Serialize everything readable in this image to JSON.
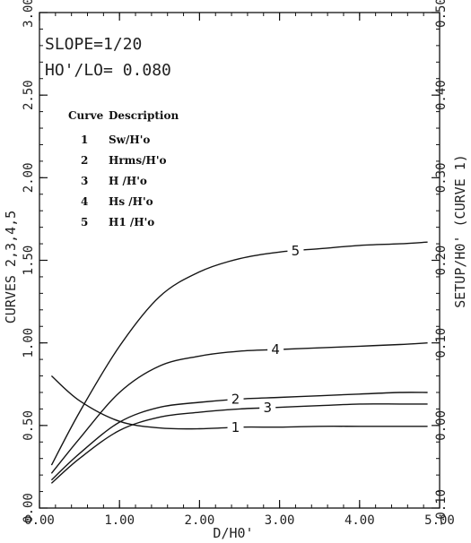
{
  "chart_data": {
    "type": "line",
    "xlabel": "D/H0'",
    "ylabel_left": "CURVES 2,3,4,5",
    "ylabel_right": "SETUP/H0' (CURVE 1)",
    "xlim": [
      0,
      5
    ],
    "ylim_left": [
      0,
      3
    ],
    "ylim_right": [
      -0.1,
      0.5
    ],
    "x_ticks": [
      "0.00",
      "1.00",
      "2.00",
      "3.00",
      "4.00",
      "5.00"
    ],
    "y_left_ticks": [
      "0.00",
      "0.50",
      "1.00",
      "1.50",
      "2.00",
      "2.50",
      "3.00"
    ],
    "y_right_ticks": [
      "-0.10",
      "0.00",
      "0.10",
      "0.20",
      "0.30",
      "0.40",
      "0.50"
    ],
    "params": [
      "SLOPE=1/20",
      "HO'/LO= 0.080"
    ],
    "legend_header": {
      "curve": "Curve",
      "description": "Description"
    },
    "legend": [
      {
        "num": "1",
        "desc": "Sw/H'o"
      },
      {
        "num": "2",
        "desc": "Hrms/H'o"
      },
      {
        "num": "3",
        "desc": "H /H'o"
      },
      {
        "num": "4",
        "desc": "Hs /H'o"
      },
      {
        "num": "5",
        "desc": "H1 /H'o"
      }
    ],
    "series": [
      {
        "name": "1",
        "axis": "right",
        "x": [
          0.15,
          0.5,
          1.0,
          1.5,
          2.0,
          2.5,
          3.0,
          3.5,
          4.0,
          4.5,
          4.85
        ],
        "y": [
          0.06,
          0.03,
          0.005,
          -0.003,
          -0.004,
          -0.002,
          -0.002,
          -0.001,
          -0.001,
          -0.001,
          -0.001
        ]
      },
      {
        "name": "2",
        "axis": "left",
        "x": [
          0.15,
          0.5,
          1.0,
          1.5,
          2.0,
          2.5,
          3.0,
          3.5,
          4.0,
          4.5,
          4.85
        ],
        "y": [
          0.17,
          0.33,
          0.52,
          0.61,
          0.64,
          0.66,
          0.67,
          0.68,
          0.69,
          0.7,
          0.7
        ]
      },
      {
        "name": "3",
        "axis": "left",
        "x": [
          0.15,
          0.5,
          1.0,
          1.5,
          2.0,
          2.5,
          3.0,
          3.5,
          4.0,
          4.5,
          4.85
        ],
        "y": [
          0.15,
          0.3,
          0.47,
          0.55,
          0.58,
          0.6,
          0.61,
          0.62,
          0.63,
          0.63,
          0.63
        ]
      },
      {
        "name": "4",
        "axis": "left",
        "x": [
          0.15,
          0.5,
          1.0,
          1.5,
          2.0,
          2.5,
          3.0,
          3.5,
          4.0,
          4.5,
          4.85
        ],
        "y": [
          0.21,
          0.42,
          0.7,
          0.86,
          0.92,
          0.95,
          0.96,
          0.97,
          0.98,
          0.99,
          1.0
        ]
      },
      {
        "name": "5",
        "axis": "left",
        "x": [
          0.15,
          0.5,
          1.0,
          1.5,
          2.0,
          2.5,
          3.0,
          3.5,
          4.0,
          4.5,
          4.85
        ],
        "y": [
          0.26,
          0.58,
          0.98,
          1.28,
          1.43,
          1.51,
          1.55,
          1.57,
          1.59,
          1.6,
          1.61
        ]
      }
    ],
    "curve_labels": [
      {
        "series": "1",
        "text": "1",
        "x": 2.45
      },
      {
        "series": "2",
        "text": "2",
        "x": 2.45
      },
      {
        "series": "3",
        "text": "3",
        "x": 2.85
      },
      {
        "series": "4",
        "text": "4",
        "x": 2.95
      },
      {
        "series": "5",
        "text": "5",
        "x": 3.2
      }
    ]
  }
}
